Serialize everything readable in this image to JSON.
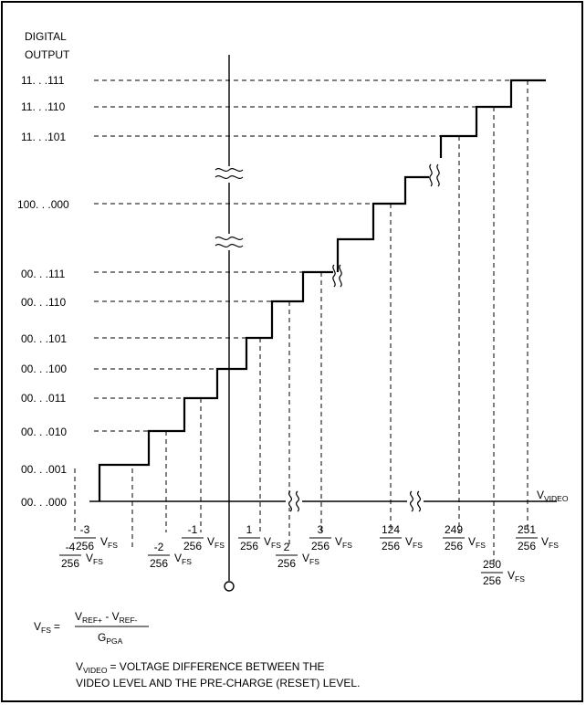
{
  "y_axis_title": [
    "DIGITAL",
    "OUTPUT"
  ],
  "output_codes": [
    {
      "code": "11. . .111"
    },
    {
      "code": "11. . .110"
    },
    {
      "code": "11. . .101"
    },
    {
      "code": "100. . .000"
    },
    {
      "code": "00. . .111"
    },
    {
      "code": "00. . .110"
    },
    {
      "code": "00. . .101"
    },
    {
      "code": "00. . .100"
    },
    {
      "code": "00. . .011"
    },
    {
      "code": "00. . .010"
    },
    {
      "code": "00. . .001"
    },
    {
      "code": "00. . .000"
    }
  ],
  "x_axis_label": {
    "main": "V",
    "subscript": "VIDEO"
  },
  "x_ticks": [
    {
      "numerator": "-4",
      "denominator": "256"
    },
    {
      "numerator": "-3",
      "denominator": "256"
    },
    {
      "numerator": "-2",
      "denominator": "256"
    },
    {
      "numerator": "-1",
      "denominator": "256"
    },
    {
      "numerator": "1",
      "denominator": "256"
    },
    {
      "numerator": "2",
      "denominator": "256"
    },
    {
      "numerator": "3",
      "denominator": "256"
    },
    {
      "numerator": "124",
      "denominator": "256"
    },
    {
      "numerator": "249",
      "denominator": "256"
    },
    {
      "numerator": "250",
      "denominator": "256"
    },
    {
      "numerator": "251",
      "denominator": "256"
    }
  ],
  "tick_unit": {
    "main": "V",
    "subscript": "FS"
  },
  "formula": {
    "lhs_main": "V",
    "lhs_sub": "FS",
    "equals": "=",
    "num_a_main": "V",
    "num_a_sub": "REF+",
    "minus": " - ",
    "num_b_main": "V",
    "num_b_sub": "REF-",
    "den_main": "G",
    "den_sub": "PGA"
  },
  "note": {
    "main": "V",
    "sub": "VIDEO",
    "line1": "= VOLTAGE DIFFERENCE BETWEEN THE",
    "line2": "VIDEO LEVEL AND THE PRE-CHARGE (RESET) LEVEL."
  }
}
